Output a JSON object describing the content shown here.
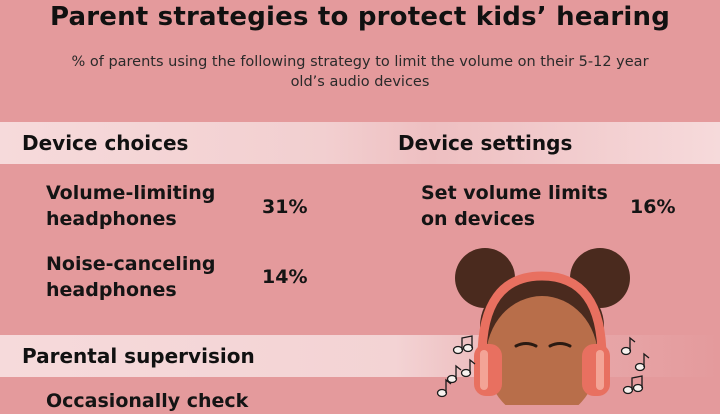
{
  "title": "Parent strategies to protect kids’ hearing",
  "subtitle": "% of parents using the following strategy to limit the volume on their 5-12 year old’s audio devices",
  "sections": {
    "device_choices": "Device choices",
    "device_settings": "Device settings",
    "parental_supervision": "Parental supervision"
  },
  "items": {
    "volume_limiting": {
      "label_line1": "Volume-limiting",
      "label_line2": "headphones",
      "value": "31%"
    },
    "noise_canceling": {
      "label_line1": "Noise-canceling",
      "label_line2": "headphones",
      "value": "14%"
    },
    "set_volume_limits": {
      "label_line1": "Set volume limits",
      "label_line2": "on devices",
      "value": "16%"
    },
    "occasionally_check": {
      "label_line1": "Occasionally check"
    }
  },
  "colors": {
    "background": "#e49a9c",
    "section_bar": "#f6dadb",
    "headphones": "#e87060",
    "skin": "#b86e4a",
    "hair": "#4a2a1e"
  },
  "icons": [
    "music-note-icon",
    "double-music-note-icon",
    "headphones-girl-illustration"
  ],
  "chart_data": {
    "type": "table",
    "title": "Parent strategies to protect kids’ hearing",
    "subtitle": "% of parents using the following strategy to limit the volume on their 5-12 year old’s audio devices",
    "groups": [
      {
        "name": "Device choices",
        "rows": [
          {
            "label": "Volume-limiting headphones",
            "value": 31
          },
          {
            "label": "Noise-canceling headphones",
            "value": 14
          }
        ]
      },
      {
        "name": "Device settings",
        "rows": [
          {
            "label": "Set volume limits on devices",
            "value": 16
          }
        ]
      },
      {
        "name": "Parental supervision",
        "rows": [
          {
            "label": "Occasionally check"
          }
        ]
      }
    ]
  }
}
